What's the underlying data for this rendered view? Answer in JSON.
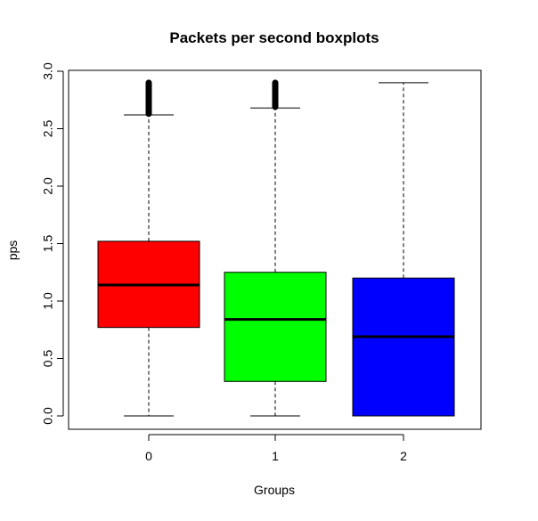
{
  "chart_data": {
    "type": "boxplot",
    "title": "Packets per second boxplots",
    "xlabel": "Groups",
    "ylabel": "pps",
    "categories": [
      "0",
      "1",
      "2"
    ],
    "ylim": [
      -0.12,
      3.0
    ],
    "yticks": [
      0.0,
      0.5,
      1.0,
      1.5,
      2.0,
      2.5,
      3.0
    ],
    "ytick_labels": [
      "0.0",
      "0.5",
      "1.0",
      "1.5",
      "2.0",
      "2.5",
      "3.0"
    ],
    "grid": false,
    "legend": "none",
    "series": [
      {
        "category": "0",
        "color": "#ff0000",
        "whisker_low": 0.0,
        "q1": 0.77,
        "median": 1.14,
        "q3": 1.52,
        "whisker_high": 2.62,
        "outliers_range": [
          2.63,
          2.9
        ]
      },
      {
        "category": "1",
        "color": "#00ff00",
        "whisker_low": 0.0,
        "q1": 0.3,
        "median": 0.84,
        "q3": 1.25,
        "whisker_high": 2.68,
        "outliers_range": [
          2.69,
          2.9
        ]
      },
      {
        "category": "2",
        "color": "#0000ff",
        "whisker_low": 0.0,
        "q1": 0.0,
        "median": 0.69,
        "q3": 1.2,
        "whisker_high": 2.9,
        "outliers_range": null
      }
    ]
  }
}
